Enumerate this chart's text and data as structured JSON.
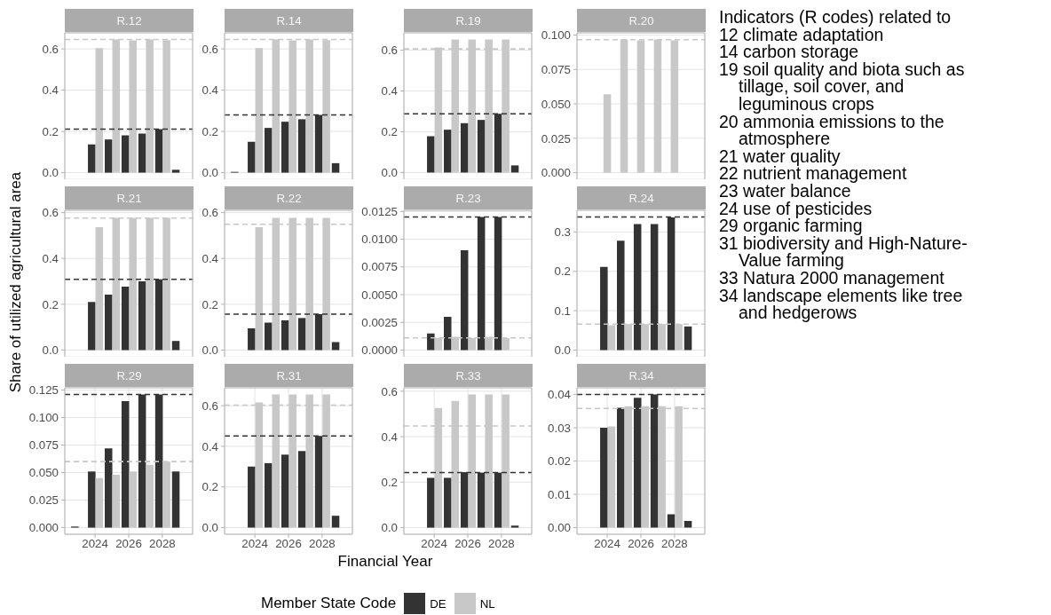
{
  "chart_data": [
    {
      "type": "bar",
      "title": "R.12",
      "series": [
        {
          "color": "#333333",
          "x": [
            2024,
            2025,
            2026,
            2027,
            2028,
            2029
          ],
          "values": [
            0.137,
            0.161,
            0.181,
            0.19,
            0.211,
            0.014
          ]
        },
        {
          "color": "#c8c8c8",
          "x": [
            2024,
            2025,
            2026,
            2027,
            2028
          ],
          "values": [
            0.604,
            0.646,
            0.641,
            0.646,
            0.643
          ]
        }
      ],
      "ref_lines": [
        {
          "axis": "y",
          "value": 0.211,
          "color": "#333333",
          "line_style": "dashed"
        },
        {
          "axis": "y",
          "value": 0.646,
          "color": "#c8c8c8",
          "line_style": "dashed"
        }
      ],
      "xlim": [
        2022.2,
        2029.8
      ],
      "xticks": [
        2024,
        2026,
        2028
      ],
      "ylim": [
        -0.032,
        0.678
      ],
      "yticks": [
        {
          "value": 0,
          "label": "0.0"
        },
        0.2,
        0.4,
        0.6
      ],
      "grid": true,
      "tick_labels": "y"
    },
    {
      "type": "bar",
      "title": "R.14",
      "series": [
        {
          "color": "#333333",
          "x": [
            2023,
            2024,
            2025,
            2026,
            2027,
            2028,
            2029
          ],
          "values": [
            0.004,
            0.15,
            0.217,
            0.247,
            0.259,
            0.28,
            0.046
          ]
        },
        {
          "color": "#c8c8c8",
          "x": [
            2024,
            2025,
            2026,
            2027,
            2028
          ],
          "values": [
            0.604,
            0.646,
            0.641,
            0.646,
            0.643
          ]
        }
      ],
      "ref_lines": [
        {
          "axis": "y",
          "value": 0.28,
          "color": "#333333",
          "line_style": "dashed"
        },
        {
          "axis": "y",
          "value": 0.646,
          "color": "#c8c8c8",
          "line_style": "dashed"
        }
      ],
      "xlim": [
        2022.2,
        2029.8
      ],
      "xticks": [
        2024,
        2026,
        2028
      ],
      "ylim": [
        -0.032,
        0.678
      ],
      "yticks": [
        {
          "value": 0,
          "label": "0.0"
        },
        0.2,
        0.4,
        0.6
      ],
      "grid": true,
      "tick_labels": "y"
    },
    {
      "type": "bar",
      "title": "R.19",
      "series": [
        {
          "color": "#333333",
          "x": [
            2024,
            2025,
            2026,
            2027,
            2028,
            2029
          ],
          "values": [
            0.178,
            0.21,
            0.242,
            0.258,
            0.288,
            0.035
          ]
        },
        {
          "color": "#c8c8c8",
          "x": [
            2024,
            2025,
            2026,
            2027,
            2028
          ],
          "values": [
            0.613,
            0.652,
            0.652,
            0.652,
            0.652
          ]
        }
      ],
      "ref_lines": [
        {
          "axis": "y",
          "value": 0.288,
          "color": "#333333",
          "line_style": "dashed"
        },
        {
          "axis": "y",
          "value": 0.606,
          "color": "#c8c8c8",
          "line_style": "dashed"
        }
      ],
      "xlim": [
        2022.2,
        2029.8
      ],
      "xticks": [
        2024,
        2026,
        2028
      ],
      "ylim": [
        -0.033,
        0.685
      ],
      "yticks": [
        {
          "value": 0,
          "label": "0.0"
        },
        0.2,
        0.4,
        0.6
      ],
      "grid": true,
      "tick_labels": "y"
    },
    {
      "type": "bar",
      "title": "R.20",
      "series": [
        {
          "color": "#c8c8c8",
          "x": [
            2024,
            2025,
            2026,
            2027,
            2028
          ],
          "values": [
            0.057,
            0.0968,
            0.0961,
            0.0968,
            0.0961
          ]
        }
      ],
      "ref_lines": [
        {
          "axis": "y",
          "value": 0.0966,
          "color": "#c8c8c8",
          "line_style": "dashed"
        }
      ],
      "xlim": [
        2022.2,
        2029.8
      ],
      "xticks": [
        2024,
        2026,
        2028
      ],
      "ylim": [
        -0.0048,
        0.1016
      ],
      "yticks": [
        {
          "value": 0,
          "label": "0.000"
        },
        0.025,
        {
          "value": 0.05,
          "label": "0.050"
        },
        0.075,
        {
          "value": 0.1,
          "label": "0.100"
        }
      ],
      "grid": true,
      "tick_labels": "y"
    },
    {
      "type": "bar",
      "title": "R.21",
      "ylabel": "Share of utilized agricultural area",
      "series": [
        {
          "color": "#333333",
          "x": [
            2024,
            2025,
            2026,
            2027,
            2028,
            2029
          ],
          "values": [
            0.21,
            0.242,
            0.277,
            0.3,
            0.309,
            0.04
          ]
        },
        {
          "color": "#c8c8c8",
          "x": [
            2024,
            2025,
            2026,
            2027,
            2028
          ],
          "values": [
            0.536,
            0.577,
            0.577,
            0.577,
            0.577
          ]
        }
      ],
      "ref_lines": [
        {
          "axis": "y",
          "value": 0.309,
          "color": "#333333",
          "line_style": "dashed"
        },
        {
          "axis": "y",
          "value": 0.576,
          "color": "#c8c8c8",
          "line_style": "dashed"
        }
      ],
      "xlim": [
        2022.2,
        2029.8
      ],
      "xticks": [
        2024,
        2026,
        2028
      ],
      "ylim": [
        -0.029,
        0.61
      ],
      "yticks": [
        {
          "value": 0,
          "label": "0.0"
        },
        0.2,
        0.4,
        0.6
      ],
      "grid": true,
      "tick_labels": "y"
    },
    {
      "type": "bar",
      "title": "R.22",
      "series": [
        {
          "color": "#333333",
          "x": [
            2024,
            2025,
            2026,
            2027,
            2028,
            2029
          ],
          "values": [
            0.095,
            0.12,
            0.13,
            0.14,
            0.157,
            0.035
          ]
        },
        {
          "color": "#c8c8c8",
          "x": [
            2024,
            2025,
            2026,
            2027,
            2028
          ],
          "values": [
            0.536,
            0.577,
            0.577,
            0.577,
            0.577
          ]
        }
      ],
      "ref_lines": [
        {
          "axis": "y",
          "value": 0.157,
          "color": "#333333",
          "line_style": "dashed"
        },
        {
          "axis": "y",
          "value": 0.549,
          "color": "#c8c8c8",
          "line_style": "dashed"
        }
      ],
      "xlim": [
        2022.2,
        2029.8
      ],
      "xticks": [
        2024,
        2026,
        2028
      ],
      "ylim": [
        -0.029,
        0.61
      ],
      "yticks": [
        {
          "value": 0,
          "label": "0.0"
        },
        0.2,
        0.4,
        0.6
      ],
      "grid": true,
      "tick_labels": "y"
    },
    {
      "type": "bar",
      "title": "R.23",
      "series": [
        {
          "color": "#333333",
          "x": [
            2024,
            2025,
            2026,
            2027,
            2028
          ],
          "values": [
            0.0015,
            0.003,
            0.009,
            0.012,
            0.012
          ]
        },
        {
          "color": "#c8c8c8",
          "x": [
            2024,
            2025,
            2026,
            2027,
            2028
          ],
          "values": [
            0.0011,
            0.0012,
            0.0011,
            0.0012,
            0.0011
          ]
        }
      ],
      "ref_lines": [
        {
          "axis": "y",
          "value": 0.012,
          "color": "#333333",
          "line_style": "dashed"
        },
        {
          "axis": "y",
          "value": 0.0011,
          "color": "#c8c8c8",
          "line_style": "dashed"
        }
      ],
      "xlim": [
        2022.2,
        2029.8
      ],
      "xticks": [
        2024,
        2026,
        2028
      ],
      "ylim": [
        -0.0006,
        0.0126
      ],
      "yticks": [
        {
          "value": 0,
          "label": "0.0000"
        },
        0.0025,
        {
          "value": 0.005,
          "label": "0.0050"
        },
        0.0075,
        {
          "value": 0.01,
          "label": "0.0100"
        },
        0.0125
      ],
      "grid": true,
      "tick_labels": "y"
    },
    {
      "type": "bar",
      "title": "R.24",
      "series": [
        {
          "color": "#333333",
          "x": [
            2024,
            2025,
            2026,
            2027,
            2028,
            2029
          ],
          "values": [
            0.211,
            0.278,
            0.32,
            0.32,
            0.337,
            0.06
          ]
        },
        {
          "color": "#c8c8c8",
          "x": [
            2024,
            2025,
            2026,
            2027,
            2028
          ],
          "values": [
            0.063,
            0.066,
            0.066,
            0.066,
            0.066
          ]
        }
      ],
      "ref_lines": [
        {
          "axis": "y",
          "value": 0.338,
          "color": "#333333",
          "line_style": "dashed"
        },
        {
          "axis": "y",
          "value": 0.066,
          "color": "#c8c8c8",
          "line_style": "dashed"
        }
      ],
      "xlim": [
        2022.2,
        2029.8
      ],
      "xticks": [
        2024,
        2026,
        2028
      ],
      "ylim": [
        -0.017,
        0.355
      ],
      "yticks": [
        {
          "value": 0,
          "label": "0.0"
        },
        0.1,
        0.2,
        0.3
      ],
      "grid": true,
      "tick_labels": "y"
    },
    {
      "type": "bar",
      "title": "R.29",
      "series": [
        {
          "color": "#333333",
          "x": [
            2023,
            2024,
            2025,
            2026,
            2027,
            2028,
            2029
          ],
          "values": [
            0.001,
            0.051,
            0.072,
            0.115,
            0.121,
            0.121,
            0.051
          ]
        },
        {
          "color": "#c8c8c8",
          "x": [
            2024,
            2025,
            2026,
            2027,
            2028
          ],
          "values": [
            0.045,
            0.048,
            0.051,
            0.057,
            0.06
          ]
        }
      ],
      "ref_lines": [
        {
          "axis": "y",
          "value": 0.121,
          "color": "#333333",
          "line_style": "dashed"
        },
        {
          "axis": "y",
          "value": 0.06,
          "color": "#c8c8c8",
          "line_style": "dashed"
        }
      ],
      "xlim": [
        2022.2,
        2029.8
      ],
      "xticks": [
        2024,
        2026,
        2028
      ],
      "ylim": [
        -0.006,
        0.127
      ],
      "yticks": [
        {
          "value": 0,
          "label": "0.000"
        },
        0.025,
        {
          "value": 0.05,
          "label": "0.050"
        },
        0.075,
        {
          "value": 0.1,
          "label": "0.100"
        },
        0.125
      ],
      "grid": true
    },
    {
      "type": "bar",
      "title": "R.31",
      "xlabel": "Financial Year",
      "legend": "bottom",
      "legend_title": "Member State Code",
      "series": [
        {
          "name": "DE",
          "color": "#333333",
          "x": [
            2024,
            2025,
            2026,
            2027,
            2028,
            2029
          ],
          "values": [
            0.3,
            0.317,
            0.359,
            0.377,
            0.451,
            0.058
          ]
        },
        {
          "name": "NL",
          "color": "#c8c8c8",
          "x": [
            2024,
            2025,
            2026,
            2027,
            2028
          ],
          "values": [
            0.616,
            0.655,
            0.655,
            0.655,
            0.655
          ]
        }
      ],
      "ref_lines": [
        {
          "axis": "y",
          "value": 0.451,
          "color": "#333333",
          "line_style": "dashed"
        },
        {
          "axis": "y",
          "value": 0.603,
          "color": "#c8c8c8",
          "line_style": "dashed"
        }
      ],
      "xlim": [
        2022.2,
        2029.8
      ],
      "xticks": [
        2024,
        2026,
        2028
      ],
      "ylim": [
        -0.033,
        0.688
      ],
      "yticks": [
        {
          "value": 0,
          "label": "0.0"
        },
        0.2,
        0.4,
        0.6
      ],
      "grid": true
    },
    {
      "type": "bar",
      "title": "R.33",
      "series": [
        {
          "color": "#333333",
          "x": [
            2024,
            2025,
            2026,
            2027,
            2028,
            2029
          ],
          "values": [
            0.219,
            0.219,
            0.244,
            0.242,
            0.242,
            0.009
          ]
        },
        {
          "color": "#c8c8c8",
          "x": [
            2024,
            2025,
            2026,
            2027,
            2028
          ],
          "values": [
            0.526,
            0.557,
            0.586,
            0.586,
            0.586
          ]
        }
      ],
      "ref_lines": [
        {
          "axis": "y",
          "value": 0.242,
          "color": "#333333",
          "line_style": "dashed"
        },
        {
          "axis": "y",
          "value": 0.447,
          "color": "#c8c8c8",
          "line_style": "dashed"
        }
      ],
      "xlim": [
        2022.2,
        2029.8
      ],
      "xticks": [
        2024,
        2026,
        2028
      ],
      "ylim": [
        -0.029,
        0.615
      ],
      "yticks": [
        {
          "value": 0,
          "label": "0.0"
        },
        0.2,
        0.4,
        0.6
      ],
      "grid": true
    },
    {
      "type": "bar",
      "title": "R.34",
      "series": [
        {
          "color": "#333333",
          "x": [
            2024,
            2025,
            2026,
            2027,
            2028,
            2029
          ],
          "values": [
            0.03,
            0.036,
            0.039,
            0.04,
            0.004,
            0.002
          ]
        },
        {
          "color": "#c8c8c8",
          "x": [
            2024,
            2025,
            2026,
            2027,
            2028
          ],
          "values": [
            0.0304,
            0.0365,
            0.0365,
            0.0365,
            0.0365
          ]
        }
      ],
      "ref_lines": [
        {
          "axis": "y",
          "value": 0.04,
          "color": "#333333",
          "line_style": "dashed"
        },
        {
          "axis": "y",
          "value": 0.0358,
          "color": "#c8c8c8",
          "line_style": "dashed"
        }
      ],
      "xlim": [
        2022.2,
        2029.8
      ],
      "xticks": [
        2024,
        2026,
        2028
      ],
      "ylim": [
        -0.002,
        0.042
      ],
      "yticks": [
        {
          "value": 0,
          "label": "0.00"
        },
        0.01,
        0.02,
        0.03,
        0.04
      ],
      "grid": true
    },
    {
      "type": "other",
      "title": "Indicators (R codes) related to",
      "annotations": [
        "12 climate adaptation",
        "14 carbon storage",
        "19 soil quality and biota such as tillage, soil cover, and leguminous crops",
        "20 ammonia emissions to the atmosphere",
        "21 water quality",
        "22 nutrient management",
        "23 water balance",
        "24 use of pesticides",
        "29 organic farming",
        "31 biodiversity and High-Nature-Value farming",
        "33 Natura 2000 management",
        "34 landscape elements like tree and hedgerows"
      ]
    }
  ]
}
